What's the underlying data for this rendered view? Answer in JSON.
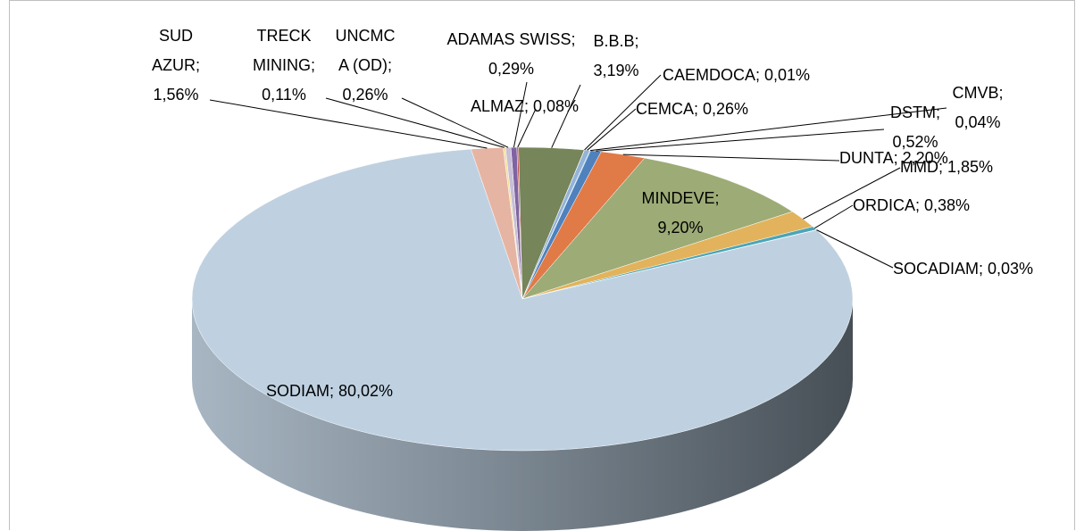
{
  "chart_data": {
    "type": "pie",
    "values": [
      0.29,
      0.08,
      3.19,
      0.01,
      0.26,
      0.04,
      0.52,
      2.2,
      9.2,
      1.85,
      0.38,
      0.03,
      80.02,
      1.56,
      0.11,
      0.26
    ],
    "value_labels": [
      "ADAMAS SWISS; 0,29%",
      "ALMAZ; 0,08%",
      "B.B.B; 3,19%",
      "CAEMDOCA; 0,01%",
      "CEMCA; 0,26%",
      "CMVB; 0,04%",
      "DSTM; 0,52%",
      "DUNTA; 2,20%",
      "MINDEVE; 9,20%",
      "MMD; 1,85%",
      "ORDICA; 0,38%",
      "SOCADIAM; 0,03%",
      "SODIAM; 80,02%",
      "SUD AZUR; 1,56%",
      "TRECK MINING; 0,11%",
      "UNCMCA (OD); 0,26%"
    ],
    "colors": [
      "#8064a2",
      "#c0504d",
      "#76855a",
      "#9bbb59",
      "#93b3d8",
      "#4bacc6",
      "#4f81bd",
      "#e07a47",
      "#9dab76",
      "#e2b35c",
      "#4aa5b8",
      "#8cb06a",
      "#bfd1e1",
      "#e6b4a3",
      "#f2df9a",
      "#c7bfd5"
    ]
  }
}
